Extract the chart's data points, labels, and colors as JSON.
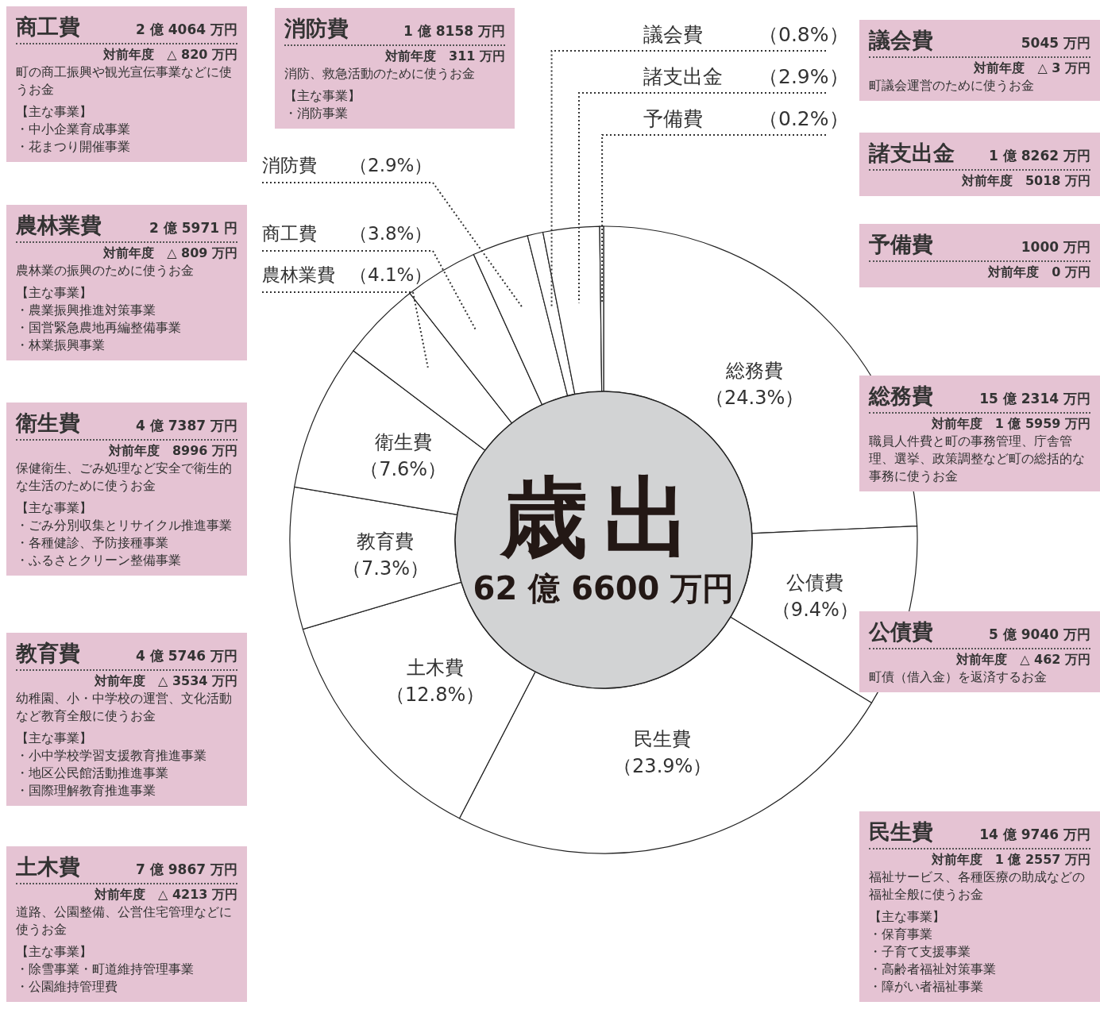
{
  "chart_data": [
    {
      "type": "donut",
      "title": "歳出",
      "subtitle": "62 億 6600 万円",
      "categories": [
        "総務費",
        "公債費",
        "民生費",
        "土木費",
        "教育費",
        "衛生費",
        "農林業費",
        "商工費",
        "消防費",
        "議会費",
        "諸支出金",
        "予備費"
      ],
      "values": [
        24.3,
        9.4,
        23.9,
        12.8,
        7.3,
        7.6,
        4.1,
        3.8,
        2.9,
        0.8,
        2.9,
        0.2
      ],
      "value_labels": [
        "（24.3%）",
        "（9.4%）",
        "（23.9%）",
        "（12.8%）",
        "（7.3%）",
        "（7.6%）",
        "（4.1%）",
        "（3.8%）",
        "（2.9%）",
        "（0.8%）",
        "（2.9%）",
        "（0.2%）"
      ],
      "colors": [
        "#ffffff",
        "#ffffff",
        "#ffffff",
        "#ffffff",
        "#ffffff",
        "#ffffff",
        "#ffffff",
        "#ffffff",
        "#ffffff",
        "#ffffff",
        "#ffffff",
        "#ffffff"
      ]
    },
    {
      "type": "other",
      "title": "商工費",
      "subtitle": "2 億 4064 万円",
      "annotations": [
        "対前年度　△ 820 万円",
        "町の商工振興や観光宣伝事業などに使うお金",
        "【主な事業】",
        "・中小企業育成事業",
        "・花まつり開催事業"
      ]
    },
    {
      "type": "other",
      "title": "消防費",
      "subtitle": "1 億 8158 万円",
      "annotations": [
        "対前年度　311 万円",
        "消防、救急活動のために使うお金",
        "【主な事業】",
        "・消防事業"
      ]
    },
    {
      "type": "other",
      "title": "議会費",
      "subtitle": "5045 万円",
      "annotations": [
        "対前年度　△ 3 万円",
        "町議会運営のために使うお金"
      ]
    },
    {
      "type": "other",
      "title": "諸支出金",
      "subtitle": "1 億 8262 万円",
      "annotations": [
        "対前年度　5018 万円"
      ]
    },
    {
      "type": "other",
      "title": "予備費",
      "subtitle": "1000 万円",
      "annotations": [
        "対前年度　0 万円"
      ]
    },
    {
      "type": "other",
      "title": "農林業費",
      "subtitle": "2 億 5971 円",
      "annotations": [
        "対前年度　△ 809 万円",
        "農林業の振興のために使うお金",
        "【主な事業】",
        "・農業振興推進対策事業",
        "・国営緊急農地再編整備事業",
        "・林業振興事業"
      ]
    },
    {
      "type": "other",
      "title": "総務費",
      "subtitle": "15 億 2314 万円",
      "annotations": [
        "対前年度　1 億 5959 万円",
        "職員人件費と町の事務管理、庁舎管理、選挙、政策調整など町の総括的な事務に使うお金"
      ]
    },
    {
      "type": "other",
      "title": "衛生費",
      "subtitle": "4 億 7387 万円",
      "annotations": [
        "対前年度　8996 万円",
        "保健衛生、ごみ処理など安全で衛生的な生活のために使うお金",
        "【主な事業】",
        "・ごみ分別収集とリサイクル推進事業",
        "・各種健診、予防接種事業",
        "・ふるさとクリーン整備事業"
      ]
    },
    {
      "type": "other",
      "title": "公債費",
      "subtitle": "5 億 9040 万円",
      "annotations": [
        "対前年度　△ 462 万円",
        "町債（借入金）を返済するお金"
      ]
    },
    {
      "type": "other",
      "title": "教育費",
      "subtitle": "4 億 5746 万円",
      "annotations": [
        "対前年度　△ 3534 万円",
        "幼稚園、小・中学校の運営、文化活動など教育全般に使うお金",
        "【主な事業】",
        "・小中学校学習支援教育推進事業",
        "・地区公民館活動推進事業",
        "・国際理解教育推進事業"
      ]
    },
    {
      "type": "other",
      "title": "民生費",
      "subtitle": "14 億 9746 万円",
      "annotations": [
        "対前年度　1 億 2557 万円",
        "福祉サービス、各種医療の助成などの福祉全般に使うお金",
        "【主な事業】",
        "・保育事業",
        "・子育て支援事業",
        "・高齢者福祉対策事業",
        "・障がい者福祉事業"
      ]
    },
    {
      "type": "other",
      "title": "土木費",
      "subtitle": "7 億 9867 万円",
      "annotations": [
        "対前年度　△ 4213 万円",
        "道路、公園整備、公営住宅管理などに使うお金",
        "【主な事業】",
        "・除雪事業・町道維持管理事業",
        "・公園維持管理費"
      ]
    }
  ]
}
